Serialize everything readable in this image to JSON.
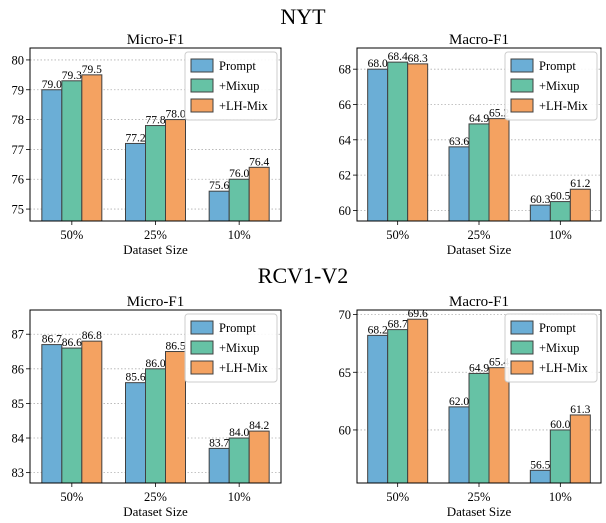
{
  "sections": [
    {
      "title": "NYT"
    },
    {
      "title": "RCV1-V2"
    }
  ],
  "colors": {
    "Prompt": "#6baed6",
    "+Mixup": "#66c2a5",
    "+LH-Mix": "#f4a261",
    "edge": "#404040",
    "grid": "#b0b0b0"
  },
  "chart_data": [
    {
      "type": "bar",
      "section": "NYT",
      "title": "Micro-F1",
      "xlabel": "Dataset Size",
      "ylabel": "",
      "categories": [
        "50%",
        "25%",
        "10%"
      ],
      "ylim": [
        74.6,
        80.4
      ],
      "yticks": [
        75,
        76,
        77,
        78,
        79,
        80
      ],
      "grid": true,
      "legend": "top-right",
      "series": [
        {
          "name": "Prompt",
          "values": [
            79.0,
            77.2,
            75.6
          ]
        },
        {
          "name": "+Mixup",
          "values": [
            79.3,
            77.8,
            76.0
          ]
        },
        {
          "name": "+LH-Mix",
          "values": [
            79.5,
            78.0,
            76.4
          ]
        }
      ]
    },
    {
      "type": "bar",
      "section": "NYT",
      "title": "Macro-F1",
      "xlabel": "Dataset Size",
      "ylabel": "",
      "categories": [
        "50%",
        "25%",
        "10%"
      ],
      "ylim": [
        59.4,
        69.2
      ],
      "yticks": [
        60,
        62,
        64,
        66,
        68
      ],
      "grid": true,
      "legend": "top-right",
      "series": [
        {
          "name": "Prompt",
          "values": [
            68.0,
            63.6,
            60.3
          ]
        },
        {
          "name": "+Mixup",
          "values": [
            68.4,
            64.9,
            60.5
          ]
        },
        {
          "name": "+LH-Mix",
          "values": [
            68.3,
            65.2,
            61.2
          ]
        }
      ]
    },
    {
      "type": "bar",
      "section": "RCV1-V2",
      "title": "Micro-F1",
      "xlabel": "Dataset Size",
      "ylabel": "",
      "categories": [
        "50%",
        "25%",
        "10%"
      ],
      "ylim": [
        82.7,
        87.7
      ],
      "yticks": [
        83,
        84,
        85,
        86,
        87
      ],
      "grid": true,
      "legend": "top-right",
      "series": [
        {
          "name": "Prompt",
          "values": [
            86.7,
            85.6,
            83.7
          ]
        },
        {
          "name": "+Mixup",
          "values": [
            86.6,
            86.0,
            84.0
          ]
        },
        {
          "name": "+LH-Mix",
          "values": [
            86.8,
            86.5,
            84.2
          ]
        }
      ]
    },
    {
      "type": "bar",
      "section": "RCV1-V2",
      "title": "Macro-F1",
      "xlabel": "Dataset Size",
      "ylabel": "",
      "categories": [
        "50%",
        "25%",
        "10%"
      ],
      "ylim": [
        55.4,
        70.4
      ],
      "yticks": [
        60,
        65,
        70
      ],
      "grid": true,
      "legend": "top-right",
      "series": [
        {
          "name": "Prompt",
          "values": [
            68.2,
            62.0,
            56.5
          ]
        },
        {
          "name": "+Mixup",
          "values": [
            68.7,
            64.9,
            60.0
          ]
        },
        {
          "name": "+LH-Mix",
          "values": [
            69.6,
            65.4,
            61.3
          ]
        }
      ]
    }
  ]
}
